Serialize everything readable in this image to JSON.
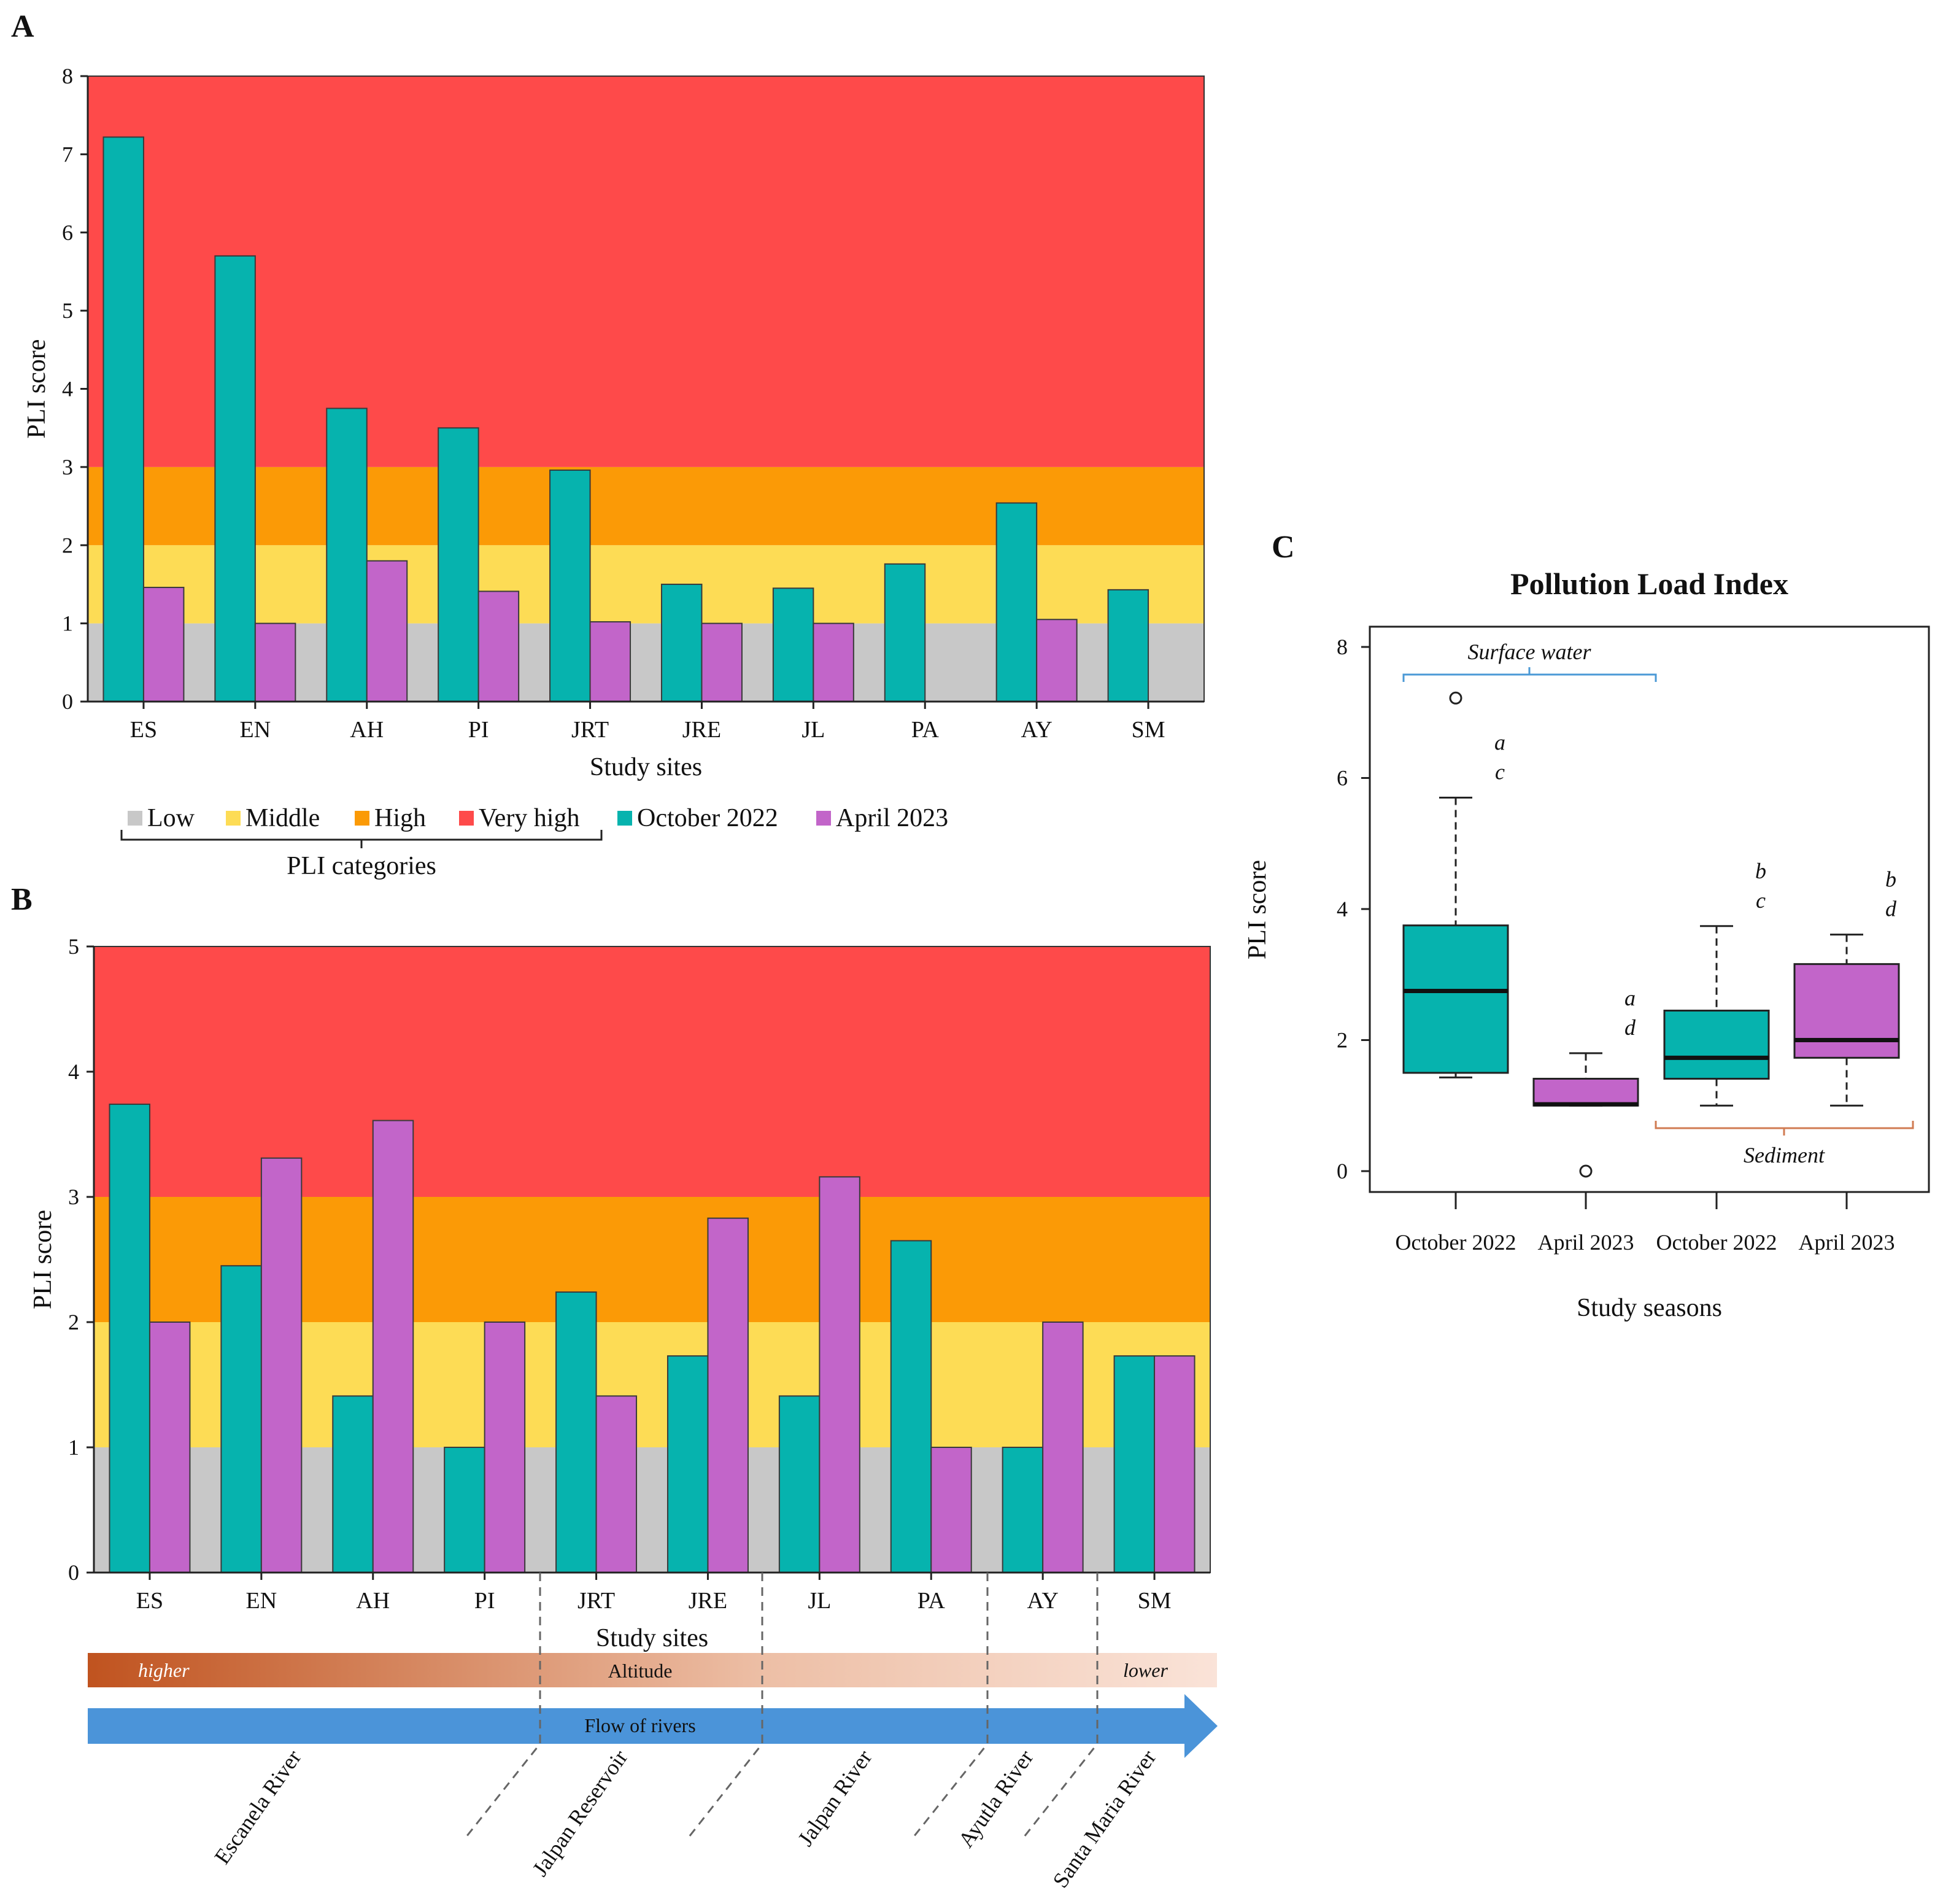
{
  "panel_labels": {
    "a": "A",
    "b": "B",
    "c": "C"
  },
  "colors": {
    "low": "#c8c8c8",
    "middle": "#fddc55",
    "high": "#fb9a06",
    "very_high": "#fe4a4a",
    "october": "#06b3ae",
    "april": "#c265c9",
    "altitude_dark": "#c0531f",
    "altitude_light": "#fae3d8",
    "flow": "#4b94d9",
    "surface_bracket": "#4b9ad6",
    "sediment_bracket": "#d07b52"
  },
  "legend": {
    "low": "Low",
    "middle": "Middle",
    "high": "High",
    "very_high": "Very high",
    "october": "October 2022",
    "april": "April 2023",
    "categories_caption": "PLI categories"
  },
  "annotations": {
    "altitude": "Altitude",
    "higher": "higher",
    "lower": "lower",
    "flow": "Flow of rivers",
    "rivers": [
      "Escanela River",
      "Jalpan Reservoir",
      "Jalpan River",
      "Ayutla River",
      "Santa Maria River"
    ],
    "surface_water": "Surface water",
    "sediment": "Sediment"
  },
  "chart_data": [
    {
      "id": "A",
      "type": "bar",
      "title": "",
      "xlabel": "Study sites",
      "ylabel": "PLI score",
      "ylim": [
        0,
        8
      ],
      "yticks": [
        0,
        1,
        2,
        3,
        4,
        5,
        6,
        7,
        8
      ],
      "bands": [
        {
          "name": "Low",
          "from": 0,
          "to": 1
        },
        {
          "name": "Middle",
          "from": 1,
          "to": 2
        },
        {
          "name": "High",
          "from": 2,
          "to": 3
        },
        {
          "name": "Very high",
          "from": 3,
          "to": 8
        }
      ],
      "categories": [
        "ES",
        "EN",
        "AH",
        "PI",
        "JRT",
        "JRE",
        "JL",
        "PA",
        "AY",
        "SM"
      ],
      "series": [
        {
          "name": "October 2022",
          "values": [
            7.22,
            5.7,
            3.75,
            3.5,
            2.96,
            1.5,
            1.45,
            1.76,
            2.54,
            1.43
          ]
        },
        {
          "name": "April 2023",
          "values": [
            1.46,
            1.0,
            1.8,
            1.41,
            1.02,
            1.0,
            1.0,
            null,
            1.05,
            null
          ]
        }
      ]
    },
    {
      "id": "B",
      "type": "bar",
      "title": "",
      "xlabel": "Study sites",
      "ylabel": "PLI score",
      "ylim": [
        0,
        5
      ],
      "yticks": [
        0,
        1,
        2,
        3,
        4,
        5
      ],
      "bands": [
        {
          "name": "Low",
          "from": 0,
          "to": 1
        },
        {
          "name": "Middle",
          "from": 1,
          "to": 2
        },
        {
          "name": "High",
          "from": 2,
          "to": 3
        },
        {
          "name": "Very high",
          "from": 3,
          "to": 5
        }
      ],
      "categories": [
        "ES",
        "EN",
        "AH",
        "PI",
        "JRT",
        "JRE",
        "JL",
        "PA",
        "AY",
        "SM"
      ],
      "series": [
        {
          "name": "October 2022",
          "values": [
            3.74,
            2.45,
            1.41,
            1.0,
            2.24,
            1.73,
            1.41,
            2.65,
            1.0,
            1.73
          ]
        },
        {
          "name": "April 2023",
          "values": [
            2.0,
            3.31,
            3.61,
            2.0,
            1.41,
            2.83,
            3.16,
            1.0,
            2.0,
            1.73
          ]
        }
      ]
    },
    {
      "id": "C",
      "type": "boxplot",
      "title": "Pollution Load Index",
      "xlabel": "Study seasons",
      "ylabel": "PLI score",
      "ylim": [
        0,
        8
      ],
      "yticks": [
        0,
        2,
        4,
        6,
        8
      ],
      "categories": [
        "October 2022",
        "April 2023",
        "October 2022",
        "April 2023"
      ],
      "groups": [
        "Surface water",
        "Surface water",
        "Sediment",
        "Sediment"
      ],
      "boxes": [
        {
          "whisker_low": 1.43,
          "q1": 1.5,
          "median": 2.75,
          "q3": 3.75,
          "whisker_high": 5.7,
          "outliers": [
            7.22
          ],
          "letters": [
            "a",
            "c"
          ]
        },
        {
          "whisker_low": 1.0,
          "q1": 1.0,
          "median": 1.02,
          "q3": 1.41,
          "whisker_high": 1.8,
          "outliers": [
            0
          ],
          "letters": [
            "a",
            "d"
          ]
        },
        {
          "whisker_low": 1.0,
          "q1": 1.41,
          "median": 1.73,
          "q3": 2.45,
          "whisker_high": 3.74,
          "outliers": [],
          "letters": [
            "b",
            "c"
          ]
        },
        {
          "whisker_low": 1.0,
          "q1": 1.73,
          "median": 2.0,
          "q3": 3.16,
          "whisker_high": 3.61,
          "outliers": [],
          "letters": [
            "b",
            "d"
          ]
        }
      ]
    }
  ]
}
